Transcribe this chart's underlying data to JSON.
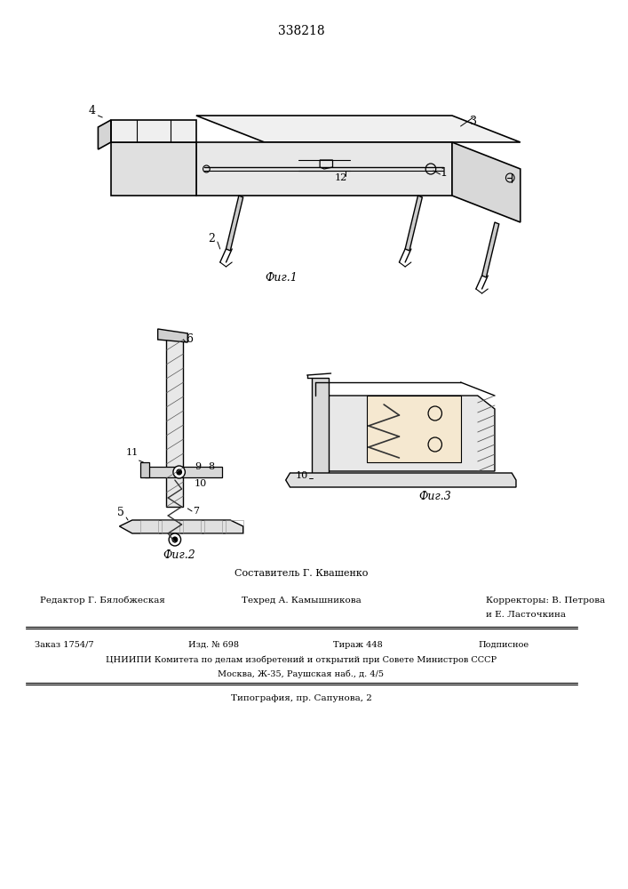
{
  "patent_number": "338218",
  "fig1_caption": "Фиг.1",
  "fig2_caption": "Фиг.2",
  "fig3_caption": "Фиг.3",
  "footer_sestavitel": "Составитель Г. Квашенко",
  "footer_redaktor": "Редактор Г. Бялобжеская",
  "footer_tehred": "Техред А. Камышникова",
  "footer_korrektory": "Корректоры: В. Петрова",
  "footer_korrektory2": "и Е. Ласточкина",
  "footer_zakaz": "Заказ 1754/7",
  "footer_izd": "Изд. № 698",
  "footer_tirazh": "Тираж 448",
  "footer_podpisnoe": "Подписное",
  "footer_tsniipi": "ЦНИИПИ Комитета по делам изобретений и открытий при Совете Министров СССР",
  "footer_moskva": "Москва, Ж-35, Раушская наб., д. 4/5",
  "footer_tipografia": "Типография, пр. Сапунова, 2",
  "bg_color": "#ffffff",
  "line_color": "#000000",
  "label_color": "#000000"
}
